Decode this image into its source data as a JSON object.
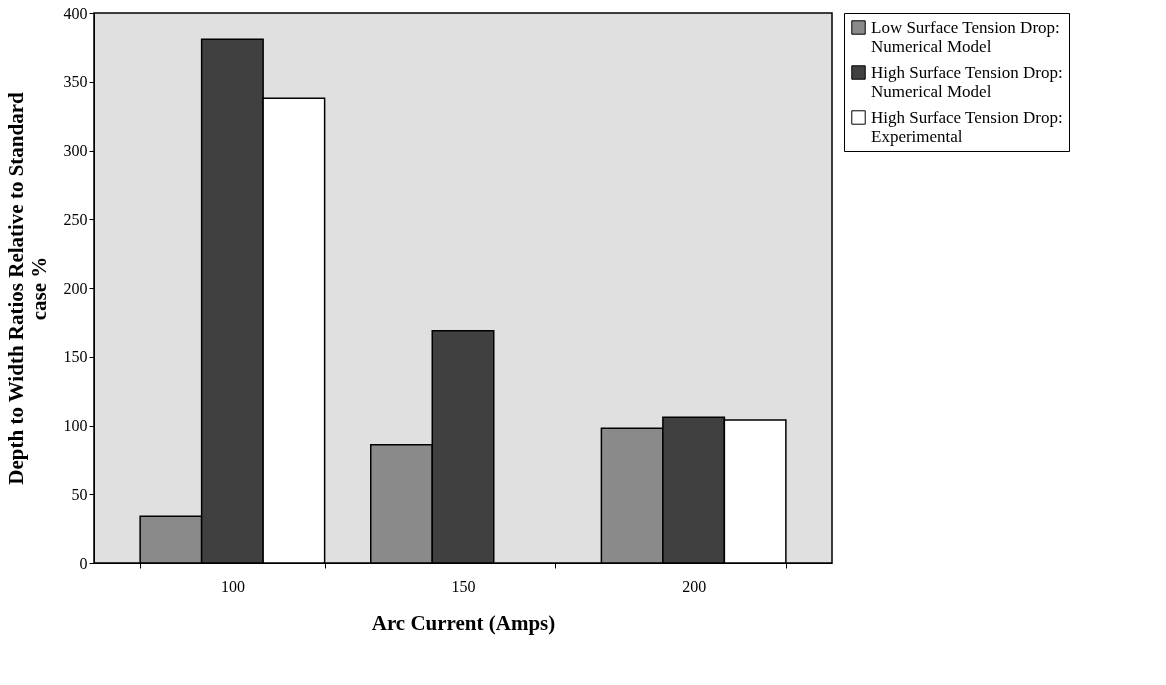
{
  "chart_data": {
    "type": "bar",
    "xlabel": "Arc Current (Amps)",
    "ylabel": "Depth to Width Ratios Relative to Standard case %",
    "categories": [
      "100",
      "150",
      "200"
    ],
    "series": [
      {
        "name": "Low Surface Tension Drop: Numerical Model",
        "color": "#8a8a8a",
        "values": [
          34,
          86,
          98
        ]
      },
      {
        "name": "High Surface Tension Drop: Numerical Model",
        "color": "#404040",
        "values": [
          381,
          169,
          106
        ]
      },
      {
        "name": "High Surface Tension Drop: Experimental",
        "color": "#ffffff",
        "values": [
          338,
          null,
          104
        ]
      }
    ],
    "ylim": [
      0,
      400
    ],
    "yticks": [
      0,
      50,
      100,
      150,
      200,
      250,
      300,
      350,
      400
    ],
    "grid": false,
    "legend": "right"
  }
}
